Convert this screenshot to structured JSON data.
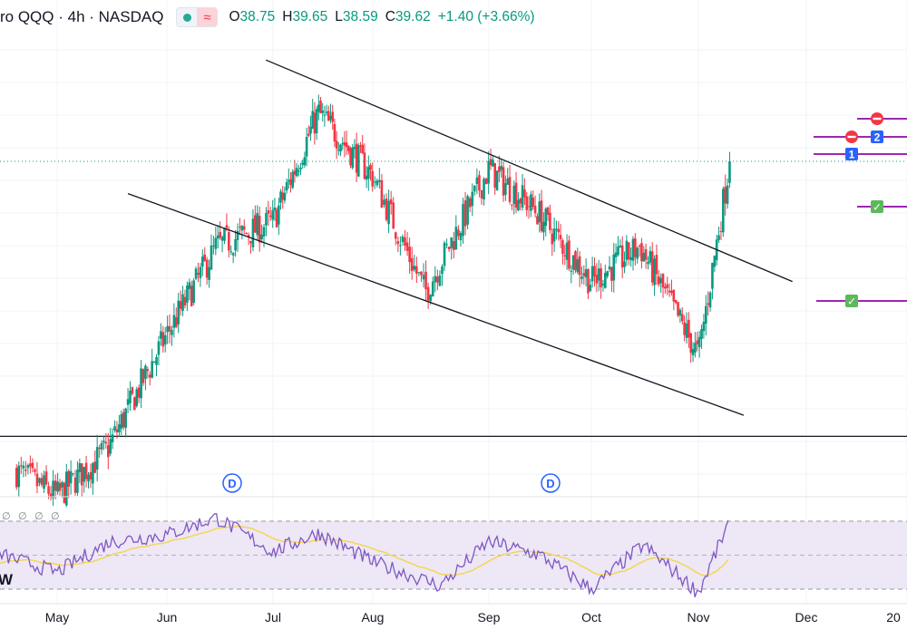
{
  "header": {
    "symbol": "ro QQQ · 4h · NASDAQ",
    "open_label": "O",
    "open": "38.75",
    "high_label": "H",
    "high": "39.65",
    "low_label": "L",
    "low": "38.59",
    "close_label": "C",
    "close": "39.62",
    "change": "+1.40 (+3.66%)",
    "wave_icon_glyph": "≈"
  },
  "colors": {
    "up": "#089981",
    "down": "#f23645",
    "rsi_line": "#7e57c2",
    "rsi_ma": "#f5d54a",
    "rsi_band": "#ede7f6",
    "level_line": "#9c27b0",
    "price_line": "#089981",
    "dividend": "#2962ff"
  },
  "markers": {
    "dividend_label": "D",
    "num1": "1",
    "num2": "2",
    "check": "✓",
    "circle_glyph": "∅",
    "rsi_label": "W"
  },
  "chart_data": [
    {
      "type": "candlestick",
      "x_axis_labels": [
        "May",
        "Jun",
        "Jul",
        "Aug",
        "Sep",
        "Oct",
        "Nov",
        "Dec",
        "20"
      ],
      "last_close": 39.62,
      "candles_approx": [
        {
          "date": "Apr 20",
          "o": 30.5,
          "h": 31.2,
          "l": 30.0,
          "c": 30.8
        },
        {
          "date": "May 1",
          "o": 30.3,
          "h": 30.9,
          "l": 29.6,
          "c": 30.1
        },
        {
          "date": "May 15",
          "o": 31.0,
          "h": 31.6,
          "l": 30.7,
          "c": 31.4
        },
        {
          "date": "Jun 1",
          "o": 34.0,
          "h": 35.0,
          "l": 33.6,
          "c": 34.7
        },
        {
          "date": "Jun 15",
          "o": 36.4,
          "h": 37.6,
          "l": 36.1,
          "c": 37.2
        },
        {
          "date": "Jul 1",
          "o": 37.0,
          "h": 38.1,
          "l": 36.6,
          "c": 37.9
        },
        {
          "date": "Jul 15",
          "o": 40.6,
          "h": 41.3,
          "l": 40.2,
          "c": 41.0
        },
        {
          "date": "Aug 1",
          "o": 39.6,
          "h": 40.2,
          "l": 38.9,
          "c": 39.2
        },
        {
          "date": "Aug 15",
          "o": 36.6,
          "h": 37.1,
          "l": 35.6,
          "c": 35.9
        },
        {
          "date": "Sep 1",
          "o": 39.2,
          "h": 39.9,
          "l": 38.8,
          "c": 39.4
        },
        {
          "date": "Sep 15",
          "o": 38.3,
          "h": 38.9,
          "l": 37.8,
          "c": 38.2
        },
        {
          "date": "Oct 1",
          "o": 35.9,
          "h": 36.6,
          "l": 35.3,
          "c": 36.2
        },
        {
          "date": "Oct 15",
          "o": 37.4,
          "h": 38.0,
          "l": 36.9,
          "c": 37.2
        },
        {
          "date": "Nov 1",
          "o": 34.6,
          "h": 35.4,
          "l": 33.2,
          "c": 34.1
        },
        {
          "date": "Nov 10",
          "o": 38.8,
          "h": 39.65,
          "l": 38.6,
          "c": 39.6
        }
      ],
      "trendlines": [
        {
          "name": "upper-channel",
          "from": {
            "date": "Jun 29",
            "price": 42.5
          },
          "to": {
            "date": "Nov 28",
            "price": 36.2
          }
        },
        {
          "name": "lower-channel",
          "from": {
            "date": "May 21",
            "price": 38.7
          },
          "to": {
            "date": "Nov 14",
            "price": 32.4
          }
        }
      ],
      "horizontal_levels": [
        31.8,
        29.2
      ]
    },
    {
      "type": "line",
      "name": "RSI",
      "band": [
        30,
        70
      ],
      "rsi_approx": [
        {
          "x": "May",
          "v": 43
        },
        {
          "x": "Jun",
          "v": 60
        },
        {
          "x": "mid-Jun",
          "v": 72
        },
        {
          "x": "Jul",
          "v": 52
        },
        {
          "x": "mid-Jul",
          "v": 63
        },
        {
          "x": "Aug",
          "v": 46
        },
        {
          "x": "mid-Aug",
          "v": 32
        },
        {
          "x": "Sep",
          "v": 58
        },
        {
          "x": "mid-Sep",
          "v": 50
        },
        {
          "x": "Oct",
          "v": 30
        },
        {
          "x": "mid-Oct",
          "v": 56
        },
        {
          "x": "Nov",
          "v": 28
        },
        {
          "x": "Nov 10",
          "v": 70
        }
      ]
    }
  ]
}
